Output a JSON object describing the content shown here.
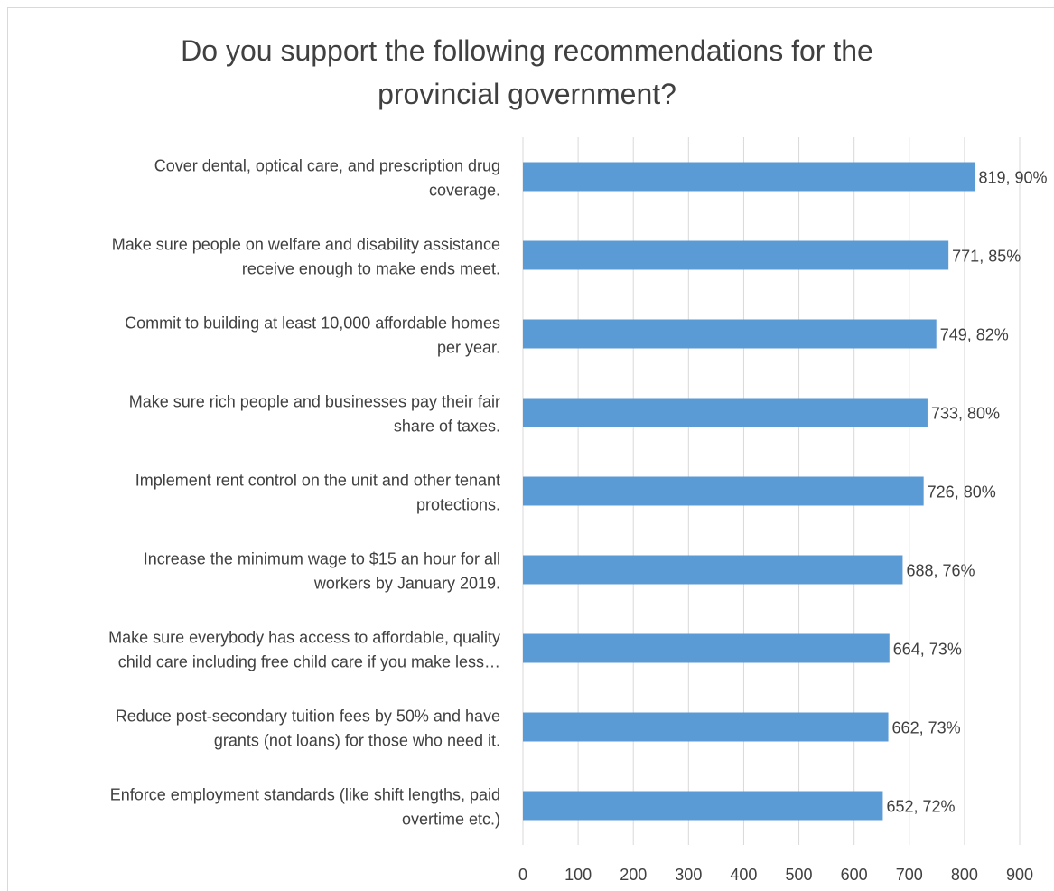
{
  "chart_data": {
    "type": "bar",
    "orientation": "horizontal",
    "title_lines": [
      "Do you support the following recommendations for the",
      "provincial government?"
    ],
    "categories": [
      [
        "Cover dental, optical care, and prescription drug",
        "coverage."
      ],
      [
        "Make sure people on welfare and disability assistance",
        "receive enough to make ends meet."
      ],
      [
        "Commit to building at least 10,000 affordable homes",
        "per year."
      ],
      [
        "Make sure rich people and businesses pay their fair",
        "share of taxes."
      ],
      [
        "Implement rent control on the unit and other tenant",
        "protections."
      ],
      [
        "Increase the minimum wage to $15 an hour for all",
        "workers by January 2019."
      ],
      [
        "Make sure everybody has access to affordable, quality",
        "child care including free child care if you make less…"
      ],
      [
        "Reduce post-secondary tuition fees by 50% and have",
        "grants (not loans) for those who need it."
      ],
      [
        "Enforce employment standards (like shift lengths, paid",
        "overtime etc.)"
      ]
    ],
    "values": [
      819,
      771,
      749,
      733,
      726,
      688,
      664,
      662,
      652
    ],
    "data_labels": [
      "819, 90%",
      "771, 85%",
      "749, 82%",
      "733, 80%",
      "726, 80%",
      "688, 76%",
      "664, 73%",
      "662, 73%",
      "652,  72%"
    ],
    "x_ticks": [
      0,
      100,
      200,
      300,
      400,
      500,
      600,
      700,
      800,
      900
    ],
    "xlim": [
      0,
      900
    ],
    "grid": true,
    "legend": "none",
    "bar_color": "#5b9bd5",
    "grid_color": "#d9d9d9",
    "text_color": "#404040"
  }
}
